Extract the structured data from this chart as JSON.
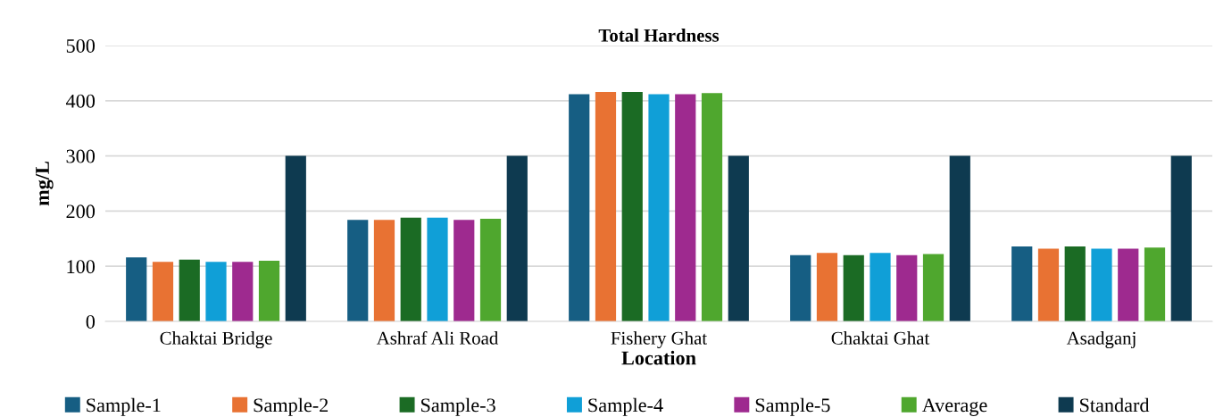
{
  "chart_data": {
    "type": "bar",
    "title": "Total Hardness",
    "xlabel": "Location",
    "ylabel": "mg/L",
    "categories": [
      "Chaktai Bridge",
      "Ashraf Ali Road",
      "Fishery Ghat",
      "Chaktai Ghat",
      "Asadganj"
    ],
    "series": [
      {
        "name": "Sample-1",
        "color": "#165e83",
        "values": [
          116,
          184,
          412,
          120,
          136
        ]
      },
      {
        "name": "Sample-2",
        "color": "#e87233",
        "values": [
          108,
          184,
          416,
          124,
          132
        ]
      },
      {
        "name": "Sample-3",
        "color": "#1b6b24",
        "values": [
          112,
          188,
          416,
          120,
          136
        ]
      },
      {
        "name": "Sample-4",
        "color": "#109fd7",
        "values": [
          108,
          188,
          412,
          124,
          132
        ]
      },
      {
        "name": "Sample-5",
        "color": "#9e2a8f",
        "values": [
          108,
          184,
          412,
          120,
          132
        ]
      },
      {
        "name": "Average",
        "color": "#4fa72e",
        "values": [
          110,
          186,
          414,
          122,
          134
        ]
      },
      {
        "name": "Standard",
        "color": "#0e3a50",
        "values": [
          300,
          300,
          300,
          300,
          300
        ]
      }
    ],
    "ylim": [
      0,
      500
    ],
    "yticks": [
      0,
      100,
      200,
      300,
      400,
      500
    ],
    "grid": "y",
    "legend": "bottom"
  }
}
